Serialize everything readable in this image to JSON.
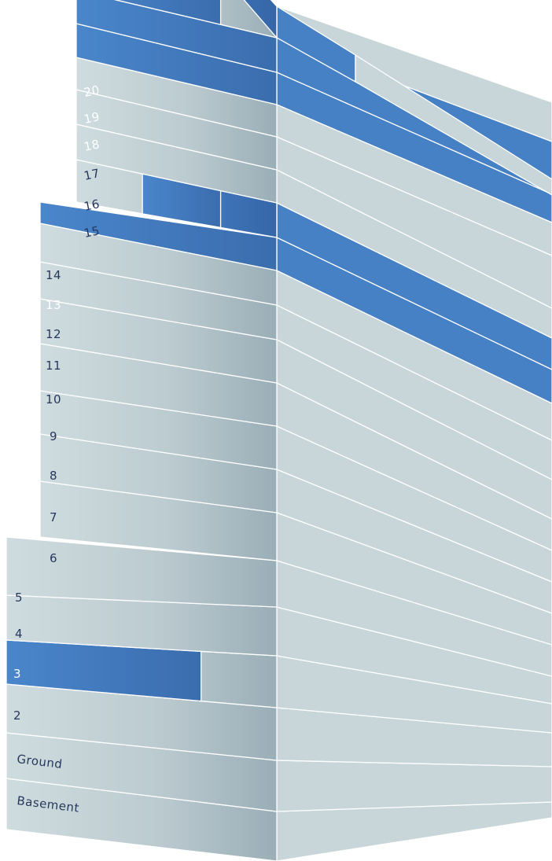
{
  "colors": {
    "front_light_left": "#cbd9dc",
    "front_light_right": "#9fb2bb",
    "side_light": "#c8d6d9",
    "highlight": "#4680c5",
    "highlight_dark": "#3a6fb1",
    "label_text": "#26375c",
    "label_text_on_highlight": "#ffffff"
  },
  "floors": [
    {
      "id": "basement",
      "label": "Basement",
      "highlighted": false
    },
    {
      "id": "ground",
      "label": "Ground",
      "highlighted": false
    },
    {
      "id": "f2",
      "label": "2",
      "highlighted": false
    },
    {
      "id": "f3",
      "label": "3",
      "highlighted": true,
      "highlight_extent": "partial"
    },
    {
      "id": "f4",
      "label": "4",
      "highlighted": false
    },
    {
      "id": "f5",
      "label": "5",
      "highlighted": false
    },
    {
      "id": "f6",
      "label": "6",
      "highlighted": false
    },
    {
      "id": "f7",
      "label": "7",
      "highlighted": false
    },
    {
      "id": "f8",
      "label": "8",
      "highlighted": false
    },
    {
      "id": "f9",
      "label": "9",
      "highlighted": false
    },
    {
      "id": "f10",
      "label": "10",
      "highlighted": false
    },
    {
      "id": "f11",
      "label": "11",
      "highlighted": false
    },
    {
      "id": "f12",
      "label": "12",
      "highlighted": false
    },
    {
      "id": "f13",
      "label": "13",
      "highlighted": true,
      "highlight_extent": "full"
    },
    {
      "id": "f14",
      "label": "14",
      "highlighted": false,
      "roof_highlight": true
    },
    {
      "id": "f15",
      "label": "15",
      "highlighted": false
    },
    {
      "id": "f16",
      "label": "16",
      "highlighted": false
    },
    {
      "id": "f17",
      "label": "17",
      "highlighted": false
    },
    {
      "id": "f18",
      "label": "18",
      "highlighted": true,
      "highlight_extent": "full"
    },
    {
      "id": "f19",
      "label": "19",
      "highlighted": true,
      "highlight_extent": "full"
    },
    {
      "id": "f20",
      "label": "20",
      "highlighted": true,
      "highlight_extent": "partial",
      "roof_highlight": true
    }
  ]
}
